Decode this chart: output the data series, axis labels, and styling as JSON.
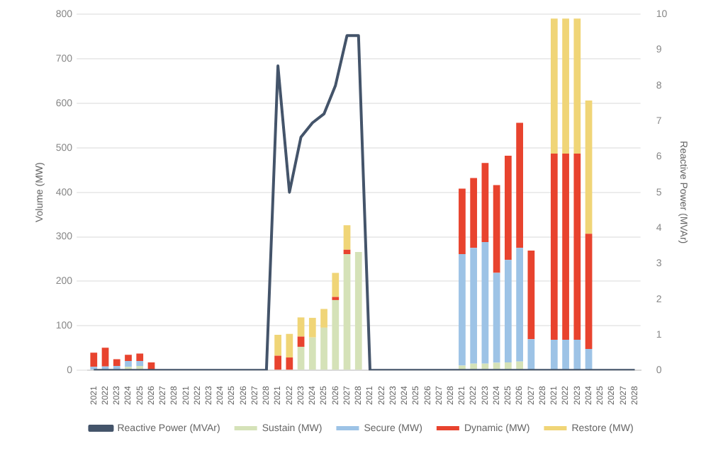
{
  "chart_data": {
    "type": "bar",
    "stacked": true,
    "ylabel": "Volume (MW)",
    "y2label": "Reactive Power (MVAr)",
    "categories": [
      "2021",
      "2022",
      "2023",
      "2024",
      "2025",
      "2026",
      "2027",
      "2028",
      "2021",
      "2022",
      "2023",
      "2024",
      "2025",
      "2026",
      "2027",
      "2028",
      "2021",
      "2022",
      "2023",
      "2024",
      "2025",
      "2026",
      "2027",
      "2028",
      "2021",
      "2022",
      "2023",
      "2024",
      "2025",
      "2026",
      "2027",
      "2028",
      "2021",
      "2022",
      "2023",
      "2024",
      "2025",
      "2026",
      "2027",
      "2028",
      "2021",
      "2022",
      "2023",
      "2024",
      "2025",
      "2026",
      "2027",
      "2028"
    ],
    "series": [
      {
        "name": "Sustain (MW)",
        "color": "#d5e2b8",
        "values": [
          null,
          null,
          null,
          8,
          10,
          2,
          0,
          0,
          0,
          0,
          0,
          0,
          0,
          0,
          0,
          0,
          0,
          0,
          53,
          74,
          96,
          158,
          261,
          266,
          0,
          0,
          0,
          0,
          0,
          0,
          0,
          0,
          11,
          15,
          15,
          17,
          18,
          20,
          0,
          0,
          0,
          0,
          0,
          0,
          0,
          0,
          0,
          0
        ]
      },
      {
        "name": "Secure (MW)",
        "color": "#9dc3e6",
        "values": [
          8,
          9,
          10,
          13,
          11,
          0,
          0,
          0,
          0,
          0,
          0,
          0,
          0,
          0,
          0,
          0,
          0,
          0,
          0,
          0,
          0,
          0,
          0,
          0,
          0,
          0,
          0,
          0,
          0,
          0,
          0,
          0,
          250,
          260,
          273,
          202,
          230,
          255,
          70,
          0,
          69,
          69,
          69,
          48,
          0,
          0,
          0,
          0
        ]
      },
      {
        "name": "Dynamic (MW)",
        "color": "#e8432e",
        "values": [
          32,
          42,
          15,
          14,
          17,
          16,
          0,
          0,
          0,
          0,
          0,
          0,
          0,
          0,
          0,
          0,
          33,
          29,
          23,
          0,
          0,
          7,
          10,
          0,
          0,
          0,
          0,
          0,
          0,
          0,
          0,
          0,
          147,
          157,
          178,
          197,
          234,
          281,
          199,
          0,
          418,
          418,
          418,
          259,
          0,
          0,
          0,
          0
        ]
      },
      {
        "name": "Restore (MW)",
        "color": "#f0d577",
        "values": [
          0,
          0,
          0,
          0,
          0,
          0,
          0,
          0,
          0,
          0,
          0,
          0,
          0,
          0,
          0,
          0,
          47,
          53,
          43,
          44,
          42,
          54,
          55,
          0,
          0,
          0,
          0,
          0,
          0,
          0,
          0,
          0,
          0,
          0,
          0,
          0,
          0,
          0,
          0,
          0,
          303,
          303,
          303,
          299,
          0,
          0,
          0,
          0
        ]
      },
      {
        "name": "Reactive Power (MVAr)",
        "type": "line",
        "axis": "y2",
        "color": "#44546a",
        "values": [
          0,
          0,
          0,
          0,
          0,
          0,
          0,
          0,
          0,
          0,
          0,
          0,
          0,
          0,
          0,
          0,
          8.55,
          5.0,
          6.55,
          6.95,
          7.2,
          8.0,
          9.4,
          9.4,
          0,
          0,
          0,
          0,
          0,
          0,
          0,
          0,
          0,
          0,
          0,
          0,
          0,
          0,
          0,
          0,
          0,
          0,
          0,
          0,
          0,
          0,
          0,
          0
        ]
      }
    ],
    "ylim": [
      0,
      800
    ],
    "yticks": [
      0,
      100,
      200,
      300,
      400,
      500,
      600,
      700,
      800
    ],
    "y2lim": [
      0,
      10
    ],
    "y2ticks": [
      0,
      1,
      2,
      3,
      4,
      5,
      6,
      7,
      8,
      9,
      10
    ],
    "grid": "y",
    "legend": "bottom",
    "marker": "none"
  }
}
